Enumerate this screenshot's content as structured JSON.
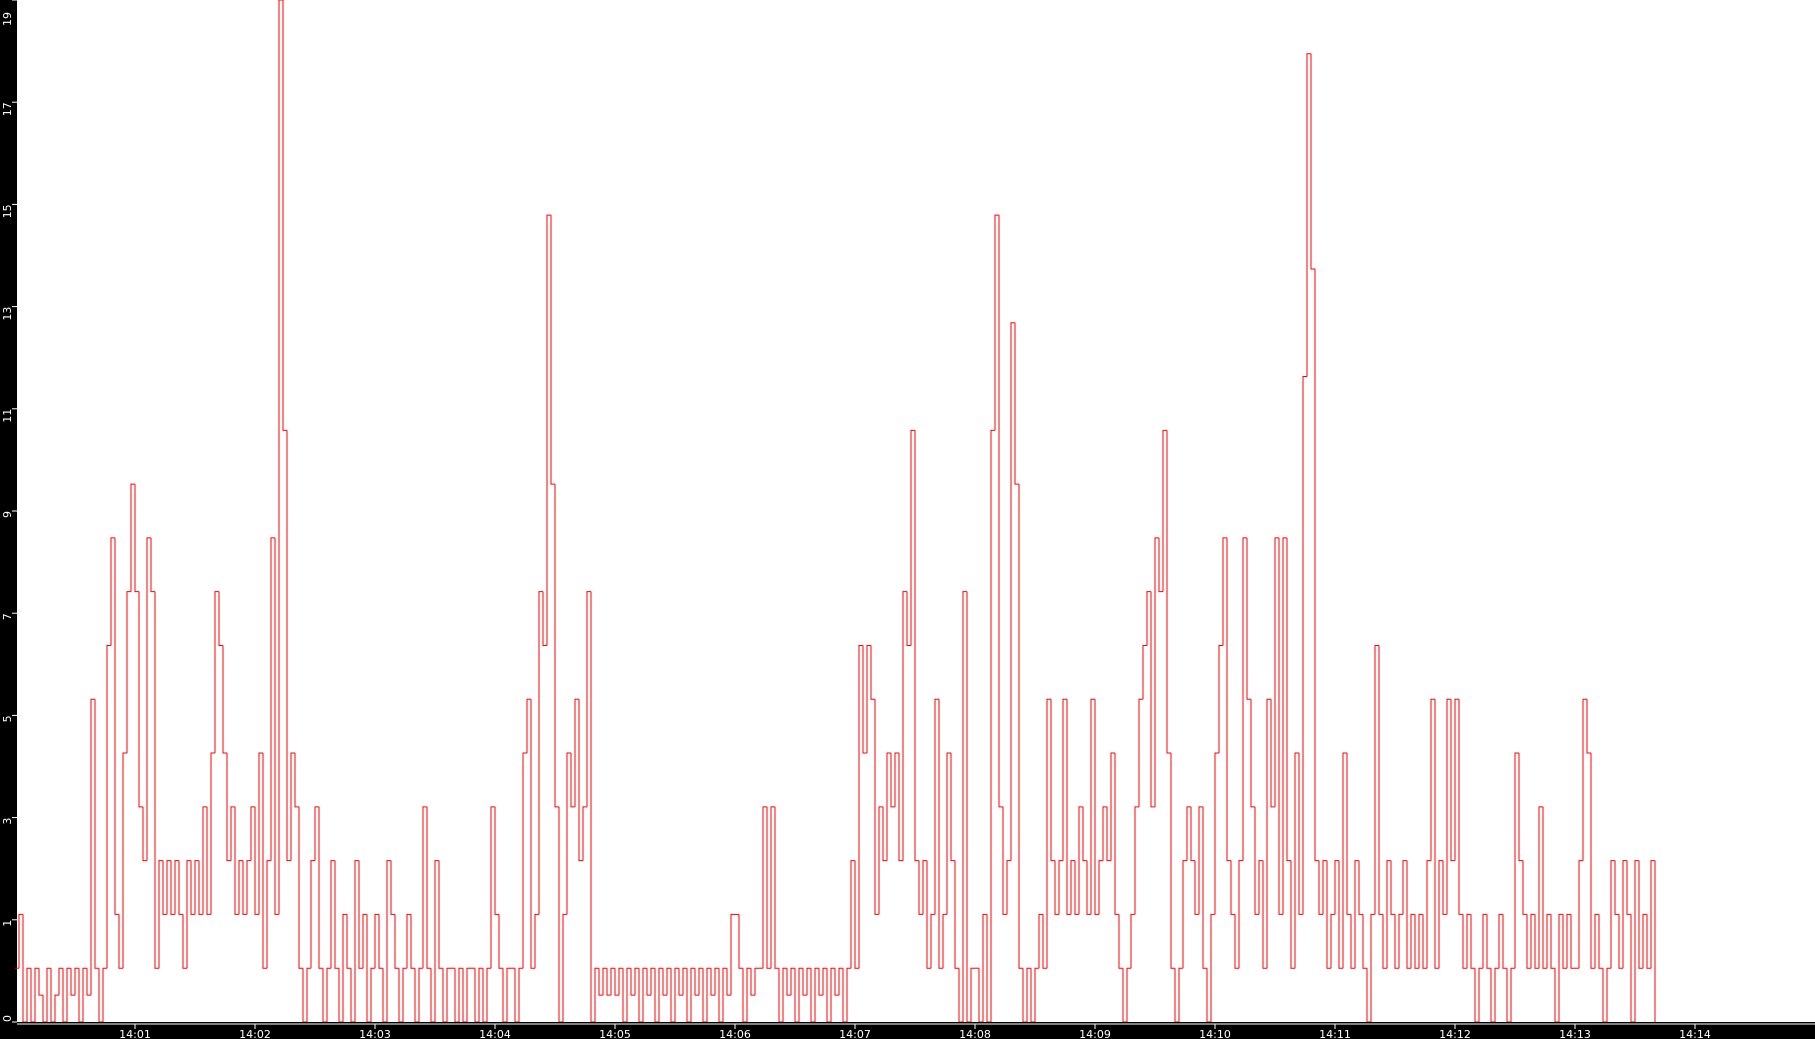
{
  "chart_data": {
    "type": "line",
    "step": true,
    "title": "",
    "xlabel": "",
    "ylabel": "",
    "x_start": "14:00:00",
    "x_step_seconds": 2,
    "x_range": [
      "14:00:00",
      "14:15:00"
    ],
    "x_tick_labels": [
      "14:01",
      "14:02",
      "14:03",
      "14:04",
      "14:05",
      "14:06",
      "14:07",
      "14:08",
      "14:09",
      "14:10",
      "14:11",
      "14:12",
      "14:13",
      "14:14"
    ],
    "y_range": [
      0,
      19
    ],
    "y_tick_labels": [
      "0",
      "1",
      "3",
      "5",
      "7",
      "9",
      "11",
      "13",
      "15",
      "17",
      "19"
    ],
    "grid": false,
    "colors": {
      "series": "#ff0000",
      "plot_background": "#ffffff",
      "axis_background": "#000000",
      "axis_text": "#ffffff"
    },
    "values": [
      1,
      2,
      0,
      1,
      0,
      1,
      0.5,
      0,
      1,
      0,
      0.5,
      1,
      0,
      1,
      0.5,
      1,
      0,
      1,
      0.5,
      6,
      1,
      0,
      1,
      7,
      9,
      2,
      1,
      5,
      8,
      10,
      8,
      4,
      3,
      9,
      8,
      1,
      3,
      2,
      3,
      2,
      3,
      2,
      1,
      3,
      2,
      3,
      2,
      4,
      2,
      5,
      8,
      7,
      5,
      3,
      4,
      2,
      3,
      2,
      3,
      4,
      2,
      5,
      1,
      3,
      9,
      2,
      19,
      11,
      3,
      5,
      4,
      1,
      0,
      1,
      3,
      4,
      1,
      0,
      1,
      3,
      1,
      0,
      2,
      1,
      0,
      3,
      1,
      2,
      0,
      1,
      2,
      1,
      0,
      3,
      2,
      1,
      0,
      1,
      2,
      1,
      0,
      1,
      4,
      1,
      0,
      3,
      1,
      0,
      1,
      1,
      0,
      1,
      0,
      1,
      1,
      0,
      1,
      0,
      1,
      4,
      2,
      1,
      0,
      1,
      1,
      0,
      1,
      5,
      6,
      1,
      2,
      8,
      7,
      15,
      10,
      4,
      0,
      2,
      5,
      4,
      6,
      3,
      4,
      8,
      0,
      1,
      0.5,
      1,
      0.5,
      1,
      0.5,
      1,
      0,
      1,
      0.5,
      1,
      0,
      1,
      0.5,
      1,
      0,
      1,
      0.5,
      1,
      0,
      1,
      0.5,
      1,
      0,
      1,
      0.5,
      1,
      0,
      1,
      0.5,
      1,
      0,
      1,
      0.5,
      2,
      2,
      1,
      0,
      1,
      0.5,
      1,
      1,
      4,
      1,
      4,
      1,
      0,
      1,
      0.5,
      1,
      0,
      1,
      0.5,
      1,
      0,
      1,
      0.5,
      1,
      0,
      1,
      0.5,
      1,
      0,
      1,
      3,
      1,
      7,
      5,
      7,
      6,
      2,
      4,
      3,
      5,
      4,
      5,
      3,
      8,
      7,
      11,
      3,
      2,
      3,
      1,
      2,
      6,
      1,
      2,
      5,
      3,
      1,
      0,
      8,
      0,
      1,
      1,
      0,
      2,
      0,
      11,
      15,
      4,
      2,
      3,
      13,
      10,
      1,
      0,
      1,
      0,
      1,
      2,
      1,
      6,
      3,
      2,
      3,
      6,
      2,
      3,
      2,
      4,
      3,
      2,
      6,
      2,
      3,
      4,
      3,
      5,
      2,
      1,
      0,
      1,
      2,
      4,
      6,
      7,
      8,
      4,
      9,
      8,
      11,
      5,
      1,
      0,
      1,
      3,
      4,
      3,
      2,
      4,
      1,
      0,
      2,
      5,
      7,
      9,
      3,
      2,
      1,
      3,
      9,
      6,
      4,
      2,
      3,
      1,
      6,
      4,
      9,
      2,
      9,
      3,
      1,
      5,
      2,
      12,
      18,
      14,
      3,
      2,
      3,
      1,
      2,
      3,
      1,
      5,
      2,
      1,
      3,
      2,
      1,
      0,
      2,
      7,
      2,
      1,
      3,
      2,
      1,
      2,
      3,
      1,
      2,
      1,
      2,
      1,
      3,
      6,
      1,
      3,
      2,
      6,
      3,
      6,
      2,
      1,
      2,
      1,
      0,
      1,
      2,
      1,
      0,
      1,
      2,
      1,
      0,
      1,
      5,
      3,
      2,
      1,
      2,
      1,
      4,
      1,
      2,
      1,
      0,
      2,
      1,
      2,
      1,
      1,
      3,
      6,
      5,
      1,
      2,
      1,
      0,
      1,
      3,
      2,
      1,
      3,
      2,
      0,
      3,
      1,
      2,
      1,
      3
    ]
  }
}
